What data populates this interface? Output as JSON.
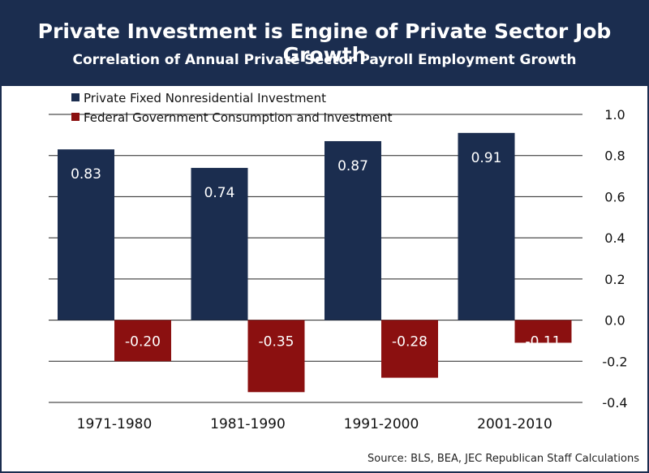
{
  "header": {
    "title": "Private Investment is Engine of Private Sector Job Growth",
    "subtitle": "Correlation of Annual Private Sector Payroll Employment Growth"
  },
  "chart_data": {
    "type": "bar",
    "categories": [
      "1971-1980",
      "1981-1990",
      "1991-2000",
      "2001-2010"
    ],
    "series": [
      {
        "name": "Private Fixed Nonresidential Investment",
        "values": [
          0.83,
          0.74,
          0.87,
          0.91
        ],
        "labels": [
          "0.83",
          "0.74",
          "0.87",
          "0.91"
        ],
        "color": "#1b2d4f"
      },
      {
        "name": "Federal Government Consumption and Investment",
        "values": [
          -0.2,
          -0.35,
          -0.28,
          -0.11
        ],
        "labels": [
          "-0.20",
          "-0.35",
          "-0.28",
          "-0.11"
        ],
        "color": "#8b1010"
      }
    ],
    "ylim": [
      -0.4,
      1.0
    ],
    "yticks": [
      "1.0",
      "0.8",
      "0.6",
      "0.4",
      "0.2",
      "0.0",
      "-0.2",
      "-0.4"
    ],
    "ytick_values": [
      1.0,
      0.8,
      0.6,
      0.4,
      0.2,
      0.0,
      -0.2,
      -0.4
    ],
    "grid": true,
    "legend": "top-left",
    "yaxis_side": "right"
  },
  "footer": {
    "source": "Source:  BLS, BEA, JEC Republican Staff Calculations"
  }
}
